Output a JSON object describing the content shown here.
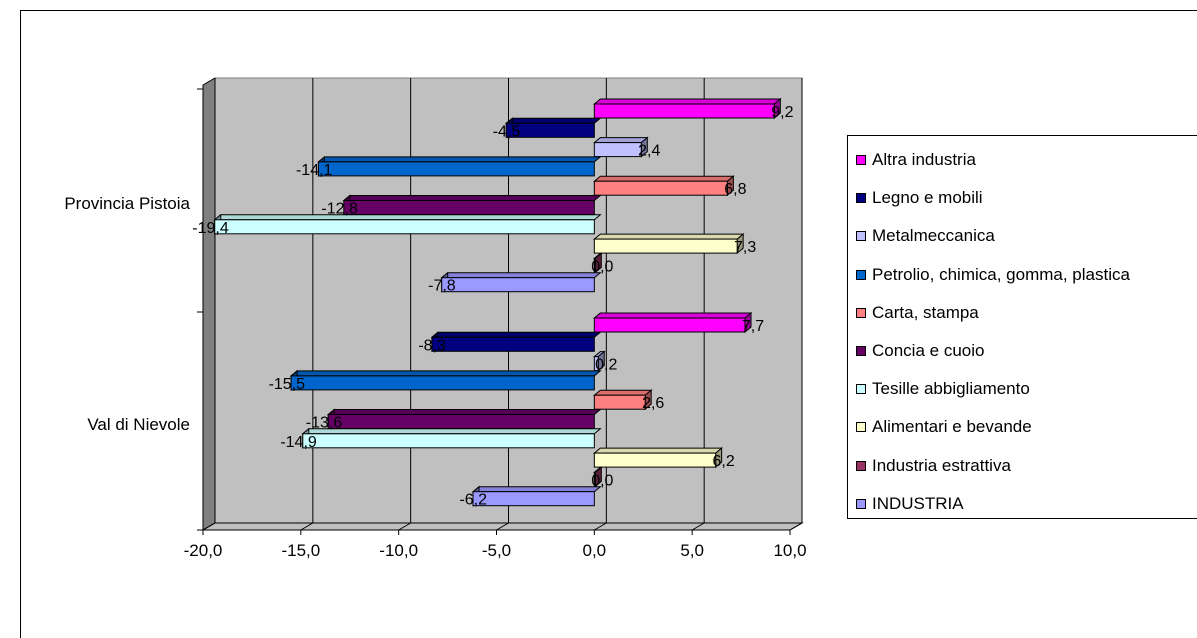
{
  "chart_data": {
    "type": "bar",
    "orientation": "horizontal",
    "categories": [
      "Provincia Pistoia",
      "Val di Nievole"
    ],
    "series": [
      {
        "name": "Altra industria",
        "values": [
          9.2,
          7.7
        ],
        "labels": [
          "9,2",
          "7,7"
        ]
      },
      {
        "name": "Legno e mobili",
        "values": [
          -4.5,
          -8.3
        ],
        "labels": [
          "-4,5",
          "-8,3"
        ]
      },
      {
        "name": "Metalmeccanica",
        "values": [
          2.4,
          0.2
        ],
        "labels": [
          "2,4",
          "0,2"
        ]
      },
      {
        "name": "Petrolio, chimica, gomma, plastica",
        "values": [
          -14.1,
          -15.5
        ],
        "labels": [
          "-14,1",
          "-15,5"
        ]
      },
      {
        "name": "Carta, stampa",
        "values": [
          6.8,
          2.6
        ],
        "labels": [
          "6,8",
          "2,6"
        ]
      },
      {
        "name": "Concia e cuoio",
        "values": [
          -12.8,
          -13.6
        ],
        "labels": [
          "-12,8",
          "-13,6"
        ]
      },
      {
        "name": "Tesille abbigliamento",
        "values": [
          -19.4,
          -14.9
        ],
        "labels": [
          "-19,4",
          "-14,9"
        ]
      },
      {
        "name": "Alimentari e bevande",
        "values": [
          7.3,
          6.2
        ],
        "labels": [
          "7,3",
          "6,2"
        ]
      },
      {
        "name": "Industria estrattiva",
        "values": [
          0.0,
          0.0
        ],
        "labels": [
          "0,0",
          "0,0"
        ]
      },
      {
        "name": "INDUSTRIA",
        "values": [
          -7.8,
          -6.2
        ],
        "labels": [
          "-7,8",
          "-6,2"
        ]
      }
    ],
    "xlim": [
      -20,
      10
    ],
    "xticks": [
      -20,
      -15,
      -10,
      -5,
      0,
      5,
      10
    ],
    "xtick_labels": [
      "-20,0",
      "-15,0",
      "-10,0",
      "-5,0",
      "0,0",
      "5,0",
      "10,0"
    ],
    "grid": true,
    "style": "3d",
    "legend_position": "right",
    "title": "",
    "xlabel": "",
    "ylabel": ""
  },
  "legend": {
    "items": [
      {
        "label": "Altra industria",
        "color": "#FF00FF"
      },
      {
        "label": "Legno e mobili",
        "color": "#000080"
      },
      {
        "label": "Metalmeccanica",
        "color": "#C0C0FF"
      },
      {
        "label": "Petrolio, chimica, gomma, plastica",
        "color": "#0066CC"
      },
      {
        "label": "Carta, stampa",
        "color": "#FF8080"
      },
      {
        "label": "Concia e cuoio",
        "color": "#660066"
      },
      {
        "label": "Tesille abbigliamento",
        "color": "#CCFFFF"
      },
      {
        "label": "Alimentari e bevande",
        "color": "#FFFFCC"
      },
      {
        "label": "Industria estrattiva",
        "color": "#993366"
      },
      {
        "label": "INDUSTRIA",
        "color": "#9999FF"
      }
    ]
  }
}
